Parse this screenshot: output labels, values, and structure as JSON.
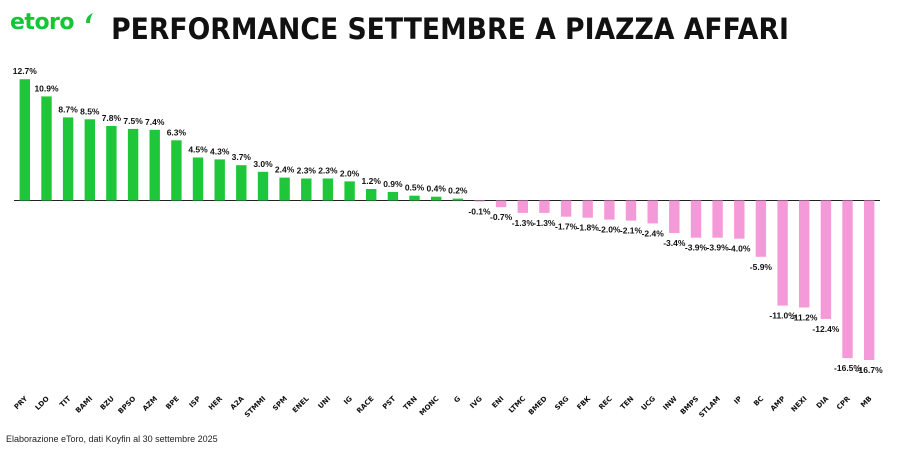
{
  "brand": {
    "logo_text": "etoro",
    "color": "#13c636"
  },
  "footer": {
    "note": "Elaborazione eToro, dati Koyfin al 30 settembre 2025"
  },
  "colors": {
    "positive": "#1ec73a",
    "negative": "#f59ad8",
    "axis": "#222222"
  },
  "chart_data": {
    "type": "bar",
    "title": "PERFORMANCE SETTEMBRE A PIAZZA AFFARI",
    "xlabel": "",
    "ylabel": "",
    "unit": "%",
    "grid": false,
    "legend": "none",
    "ylim": [
      -17,
      13.5
    ],
    "categories": [
      "PRY",
      "LDO",
      "TIT",
      "BAMI",
      "BZU",
      "BPSO",
      "AZM",
      "BPE",
      "ISP",
      "HER",
      "A2A",
      "STMMI",
      "SPM",
      "ENEL",
      "UNI",
      "IG",
      "RACE",
      "PST",
      "TRN",
      "MONC",
      "G",
      "IVG",
      "ENI",
      "LTMC",
      "BMED",
      "SRG",
      "FBK",
      "REC",
      "TEN",
      "UCG",
      "INW",
      "BMPS",
      "STLAM",
      "IP",
      "BC",
      "AMP",
      "NEXI",
      "DIA",
      "CPR",
      "MB"
    ],
    "values": [
      12.7,
      10.9,
      8.7,
      8.5,
      7.8,
      7.5,
      7.4,
      6.3,
      4.5,
      4.3,
      3.7,
      3.0,
      2.4,
      2.3,
      2.3,
      2.0,
      1.2,
      0.9,
      0.5,
      0.4,
      0.2,
      -0.1,
      -0.7,
      -1.3,
      -1.3,
      -1.7,
      -1.8,
      -2.0,
      -2.1,
      -2.4,
      -3.4,
      -3.9,
      -3.9,
      -4.0,
      -5.9,
      -11.0,
      -11.2,
      -12.4,
      -16.5,
      -16.7
    ],
    "labels": [
      "12.7%",
      "10.9%",
      "8.7%",
      "8.5%",
      "7.8%",
      "7.5%",
      "7.4%",
      "6.3%",
      "4.5%",
      "4.3%",
      "3.7%",
      "3.0%",
      "2.4%",
      "2.3%",
      "2.3%",
      "2.0%",
      "1.2%",
      "0.9%",
      "0.5%",
      "0.4%",
      "0.2%",
      "-0.1%",
      "-0.7%",
      "-1.3%",
      "-1.3%",
      "-1.7%",
      "-1.8%",
      "-2.0%",
      "-2.1%",
      "-2.4%",
      "-3.4%",
      "-3.9%",
      "-3.9%",
      "-4.0%",
      "-5.9%",
      "-11.0%",
      "-11.2%",
      "-12.4%",
      "-16.5%",
      "-16.7%"
    ]
  }
}
